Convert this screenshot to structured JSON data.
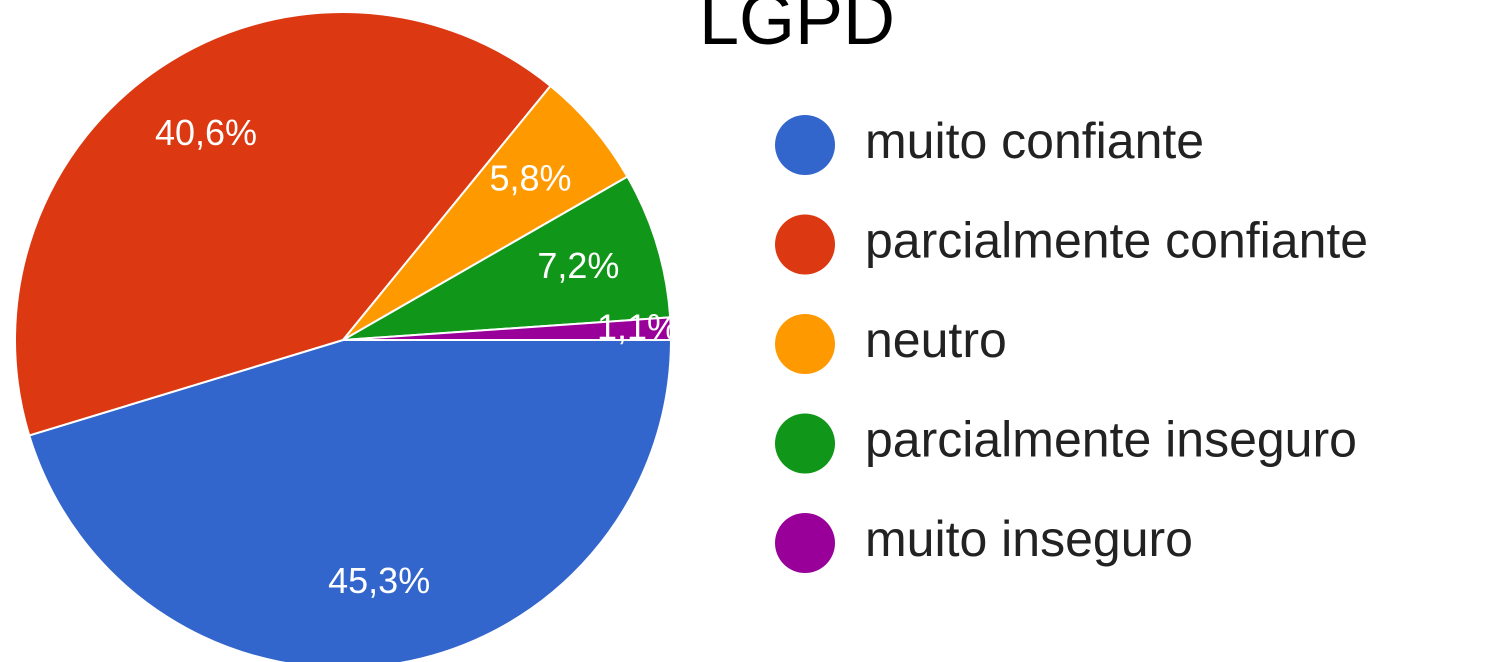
{
  "chart_data": {
    "type": "pie",
    "title": "LGPD",
    "categories": [
      "muito confiante",
      "parcialmente confiante",
      "neutro",
      "parcialmente inseguro",
      "muito inseguro"
    ],
    "values": [
      45.3,
      40.6,
      5.8,
      7.2,
      1.1
    ],
    "value_labels": [
      "45,3%",
      "40,6%",
      "5,8%",
      "7,2%",
      "1,1%"
    ],
    "colors": [
      "#3366cc",
      "#dc3912",
      "#ff9900",
      "#109618",
      "#990099"
    ],
    "legend": "right"
  }
}
